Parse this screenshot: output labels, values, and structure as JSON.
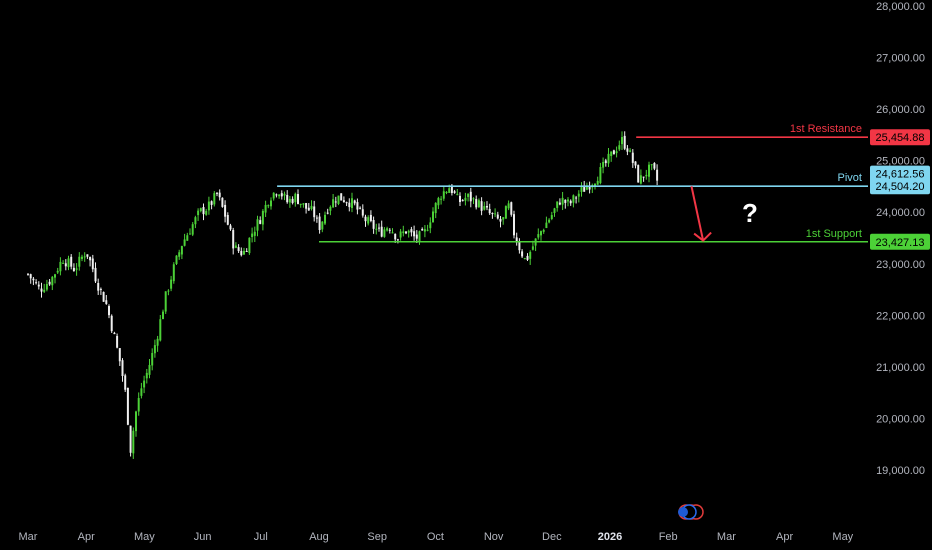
{
  "chart_data": {
    "type": "candlestick",
    "y_axis": {
      "range": [
        18000,
        28000
      ],
      "ticks": [
        "19,000.00",
        "20,000.00",
        "21,000.00",
        "22,000.00",
        "23,000.00",
        "24,000.00",
        "25,000.00",
        "26,000.00",
        "27,000.00",
        "28,000.00"
      ],
      "tick_values": [
        19000,
        20000,
        21000,
        22000,
        23000,
        24000,
        25000,
        26000,
        27000,
        28000
      ],
      "position": "right"
    },
    "x_axis": {
      "months": [
        {
          "label": "Mar",
          "bold": false
        },
        {
          "label": "Apr",
          "bold": false
        },
        {
          "label": "May",
          "bold": false
        },
        {
          "label": "Jun",
          "bold": false
        },
        {
          "label": "Jul",
          "bold": false
        },
        {
          "label": "Aug",
          "bold": false
        },
        {
          "label": "Sep",
          "bold": false
        },
        {
          "label": "Oct",
          "bold": false
        },
        {
          "label": "Nov",
          "bold": false
        },
        {
          "label": "Dec",
          "bold": false
        },
        {
          "label": "2026",
          "bold": true
        },
        {
          "label": "Feb",
          "bold": false
        },
        {
          "label": "Mar",
          "bold": false
        },
        {
          "label": "Apr",
          "bold": false
        },
        {
          "label": "May",
          "bold": false
        }
      ]
    },
    "levels": [
      {
        "name": "1st Resistance",
        "value": 25454.88,
        "badge": "25,454.88",
        "color": "#f23645",
        "start_month": 10.45
      },
      {
        "name": "Pivot",
        "value": 24504.2,
        "badge": "24,504.20",
        "color": "#7fd6f0",
        "start_month": 4.28
      },
      {
        "name": "1st Support",
        "value": 23427.13,
        "badge": "23,427.13",
        "color": "#4cd137",
        "start_month": 5.0
      }
    ],
    "last_price": {
      "value": 24612.56,
      "badge": "24,612.56",
      "color": "#7fd6f0"
    },
    "annotation": {
      "type": "arrow",
      "color": "#f23645",
      "from_month": 11.4,
      "from_value": 24504,
      "to_month": 11.6,
      "to_value": 23450
    },
    "question_mark": "?",
    "colors": {
      "up": "#4cd137",
      "down": "#f0f0f0",
      "background": "#000000"
    },
    "closes_anchor": [
      [
        0.0,
        22800
      ],
      [
        0.2,
        22500
      ],
      [
        0.4,
        22700
      ],
      [
        0.6,
        23100
      ],
      [
        0.8,
        22900
      ],
      [
        1.0,
        23250
      ],
      [
        1.1,
        22950
      ],
      [
        1.2,
        22600
      ],
      [
        1.35,
        22200
      ],
      [
        1.5,
        21500
      ],
      [
        1.6,
        21000
      ],
      [
        1.7,
        20300
      ],
      [
        1.75,
        19300
      ],
      [
        1.85,
        20100
      ],
      [
        1.95,
        20600
      ],
      [
        2.05,
        20900
      ],
      [
        2.2,
        21500
      ],
      [
        2.35,
        22300
      ],
      [
        2.5,
        22900
      ],
      [
        2.65,
        23400
      ],
      [
        2.8,
        23700
      ],
      [
        2.95,
        24000
      ],
      [
        3.1,
        24100
      ],
      [
        3.25,
        24350
      ],
      [
        3.4,
        23900
      ],
      [
        3.55,
        23300
      ],
      [
        3.7,
        23200
      ],
      [
        3.85,
        23600
      ],
      [
        4.0,
        23900
      ],
      [
        4.15,
        24300
      ],
      [
        4.3,
        24450
      ],
      [
        4.45,
        24200
      ],
      [
        4.6,
        24300
      ],
      [
        4.75,
        24100
      ],
      [
        4.9,
        24000
      ],
      [
        5.0,
        23700
      ],
      [
        5.15,
        24100
      ],
      [
        5.3,
        24300
      ],
      [
        5.45,
        24250
      ],
      [
        5.6,
        24150
      ],
      [
        5.75,
        23900
      ],
      [
        5.9,
        23750
      ],
      [
        6.05,
        23600
      ],
      [
        6.2,
        23750
      ],
      [
        6.35,
        23500
      ],
      [
        6.5,
        23650
      ],
      [
        6.65,
        23500
      ],
      [
        6.8,
        23550
      ],
      [
        6.95,
        24000
      ],
      [
        7.1,
        24350
      ],
      [
        7.25,
        24500
      ],
      [
        7.4,
        24200
      ],
      [
        7.55,
        24300
      ],
      [
        7.7,
        24200
      ],
      [
        7.85,
        24050
      ],
      [
        8.0,
        23900
      ],
      [
        8.15,
        23800
      ],
      [
        8.25,
        24150
      ],
      [
        8.35,
        23600
      ],
      [
        8.45,
        23300
      ],
      [
        8.55,
        23050
      ],
      [
        8.7,
        23400
      ],
      [
        8.85,
        23700
      ],
      [
        9.0,
        23950
      ],
      [
        9.15,
        24250
      ],
      [
        9.3,
        24150
      ],
      [
        9.45,
        24350
      ],
      [
        9.6,
        24500
      ],
      [
        9.75,
        24650
      ],
      [
        9.9,
        24900
      ],
      [
        10.05,
        25150
      ],
      [
        10.2,
        25400
      ],
      [
        10.3,
        25250
      ],
      [
        10.4,
        24950
      ],
      [
        10.5,
        24600
      ],
      [
        10.6,
        24750
      ],
      [
        10.7,
        24850
      ],
      [
        10.8,
        24700
      ],
      [
        10.85,
        24612
      ]
    ]
  }
}
